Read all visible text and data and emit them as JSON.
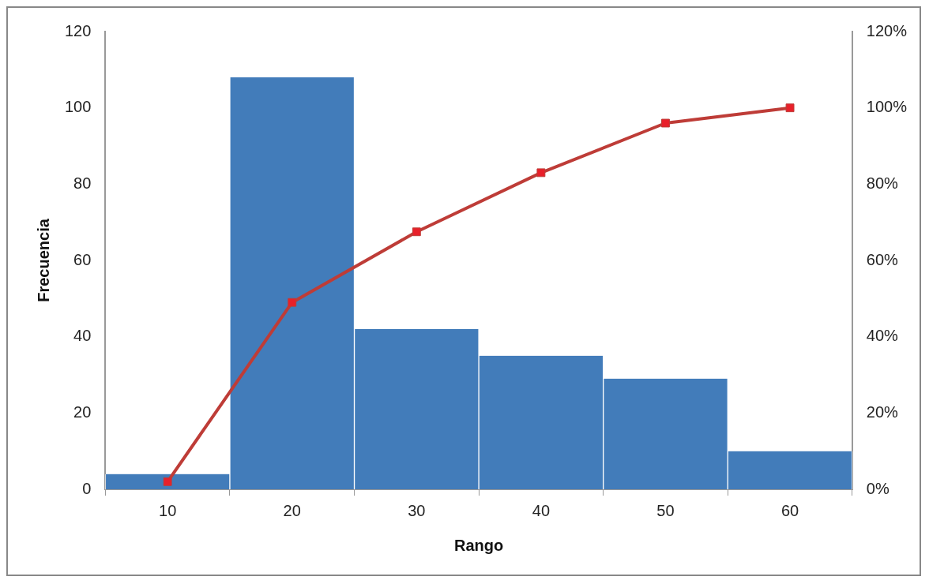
{
  "chart_data": {
    "type": "bar",
    "xlabel": "Rango",
    "ylabel": "Frecuencia",
    "categories": [
      "10",
      "20",
      "30",
      "40",
      "50",
      "60"
    ],
    "series": [
      {
        "color": "#427cba",
        "values": [
          4,
          108,
          42,
          35,
          29,
          10
        ]
      },
      {
        "type": "line",
        "axis": "y2",
        "color": "#be3c37",
        "values": [
          2,
          49,
          67.5,
          83,
          96,
          100
        ]
      }
    ],
    "ylim": [
      0,
      120
    ],
    "yticks": [
      0,
      20,
      40,
      60,
      80,
      100,
      120
    ],
    "y2lim": [
      0,
      120
    ],
    "y2ticks": [
      {
        "value": 0,
        "label": "0%"
      },
      {
        "value": 20,
        "label": "20%"
      },
      {
        "value": 40,
        "label": "40%"
      },
      {
        "value": 60,
        "label": "60%"
      },
      {
        "value": 80,
        "label": "80%"
      },
      {
        "value": 100,
        "label": "100%"
      },
      {
        "value": 120,
        "label": "120%"
      }
    ],
    "marker": "square",
    "line_style": "solid",
    "grid": false,
    "legend": false
  }
}
